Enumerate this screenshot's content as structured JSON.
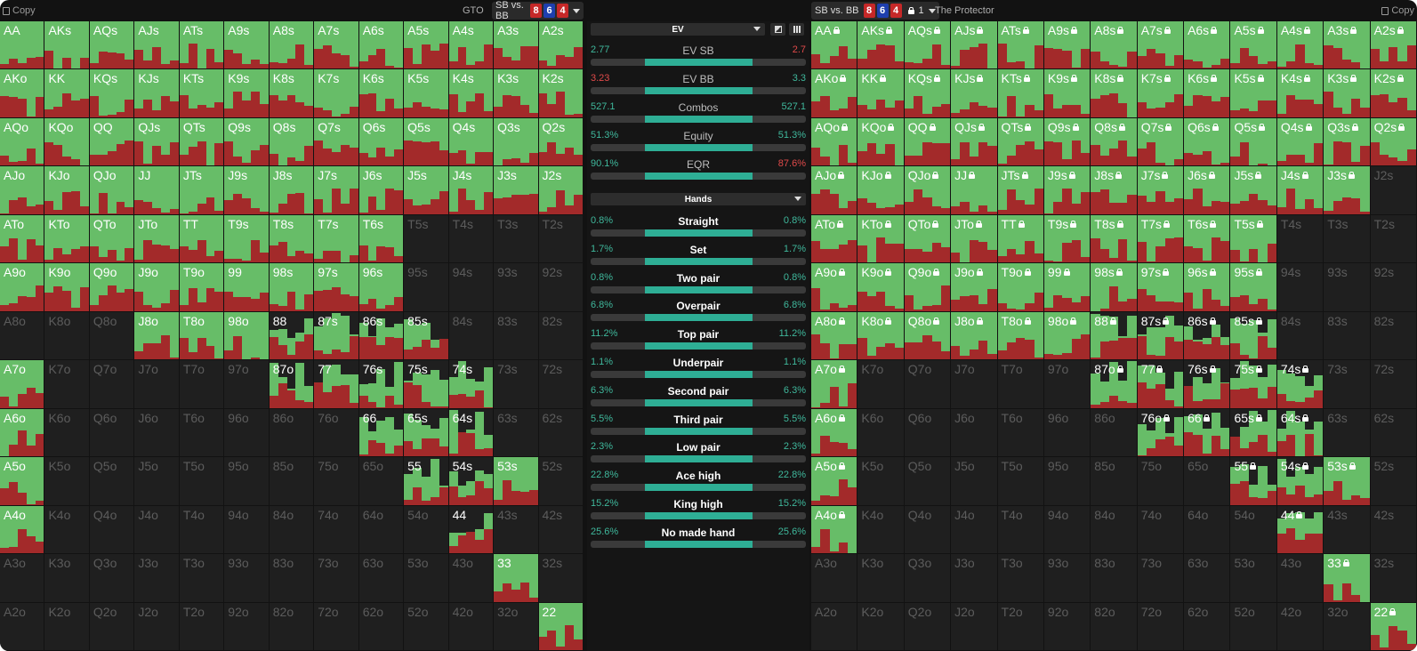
{
  "colors": {
    "green": "#67bd68",
    "red": "#a32a2a",
    "teal": "#2eae95",
    "bg": "#121212",
    "card_red": "#c62828",
    "card_blue": "#1e3fae"
  },
  "left": {
    "copy_label": "Copy",
    "strategy_name": "GTO",
    "spot_label": "SB vs. BB",
    "board": [
      "8",
      "6",
      "4"
    ]
  },
  "right": {
    "copy_label": "Copy",
    "strategy_name": "The Protector",
    "spot_label": "SB vs. BB",
    "board": [
      "8",
      "6",
      "4"
    ],
    "lock_count": "1"
  },
  "middle": {
    "metric_select": "EV",
    "hands_select": "Hands",
    "icons": [
      "contrast-icon",
      "grid-icon"
    ],
    "stats": [
      {
        "name": "EV SB",
        "left": "2.77",
        "right": "2.7",
        "left_color": "#3fb89c",
        "right_color": "#e04a4a"
      },
      {
        "name": "EV BB",
        "left": "3.23",
        "right": "3.3",
        "left_color": "#e04a4a",
        "right_color": "#3fb89c"
      },
      {
        "name": "Combos",
        "left": "527.1",
        "right": "527.1",
        "left_color": "#3fb89c",
        "right_color": "#3fb89c"
      },
      {
        "name": "Equity",
        "left": "51.3%",
        "right": "51.3%",
        "left_color": "#3fb89c",
        "right_color": "#3fb89c"
      },
      {
        "name": "EQR",
        "left": "90.1%",
        "right": "87.6%",
        "left_color": "#3fb89c",
        "right_color": "#e04a4a"
      }
    ],
    "hands": [
      {
        "name": "Straight",
        "left": "0.8%",
        "right": "0.8%"
      },
      {
        "name": "Set",
        "left": "1.7%",
        "right": "1.7%"
      },
      {
        "name": "Two pair",
        "left": "0.8%",
        "right": "0.8%"
      },
      {
        "name": "Overpair",
        "left": "6.8%",
        "right": "6.8%"
      },
      {
        "name": "Top pair",
        "left": "11.2%",
        "right": "11.2%"
      },
      {
        "name": "Underpair",
        "left": "1.1%",
        "right": "1.1%"
      },
      {
        "name": "Second pair",
        "left": "6.3%",
        "right": "6.3%"
      },
      {
        "name": "Third pair",
        "left": "5.5%",
        "right": "5.5%"
      },
      {
        "name": "Low pair",
        "left": "2.3%",
        "right": "2.3%"
      },
      {
        "name": "Ace high",
        "left": "22.8%",
        "right": "22.8%"
      },
      {
        "name": "King high",
        "left": "15.2%",
        "right": "15.2%"
      },
      {
        "name": "No made hand",
        "left": "25.6%",
        "right": "25.6%"
      }
    ]
  },
  "matrix_labels": [
    [
      "AA",
      "AKs",
      "AQs",
      "AJs",
      "ATs",
      "A9s",
      "A8s",
      "A7s",
      "A6s",
      "A5s",
      "A4s",
      "A3s",
      "A2s"
    ],
    [
      "AKo",
      "KK",
      "KQs",
      "KJs",
      "KTs",
      "K9s",
      "K8s",
      "K7s",
      "K6s",
      "K5s",
      "K4s",
      "K3s",
      "K2s"
    ],
    [
      "AQo",
      "KQo",
      "QQ",
      "QJs",
      "QTs",
      "Q9s",
      "Q8s",
      "Q7s",
      "Q6s",
      "Q5s",
      "Q4s",
      "Q3s",
      "Q2s"
    ],
    [
      "AJo",
      "KJo",
      "QJo",
      "JJ",
      "JTs",
      "J9s",
      "J8s",
      "J7s",
      "J6s",
      "J5s",
      "J4s",
      "J3s",
      "J2s"
    ],
    [
      "ATo",
      "KTo",
      "QTo",
      "JTo",
      "TT",
      "T9s",
      "T8s",
      "T7s",
      "T6s",
      "T5s",
      "T4s",
      "T3s",
      "T2s"
    ],
    [
      "A9o",
      "K9o",
      "Q9o",
      "J9o",
      "T9o",
      "99",
      "98s",
      "97s",
      "96s",
      "95s",
      "94s",
      "93s",
      "92s"
    ],
    [
      "A8o",
      "K8o",
      "Q8o",
      "J8o",
      "T8o",
      "98o",
      "88",
      "87s",
      "86s",
      "85s",
      "84s",
      "83s",
      "82s"
    ],
    [
      "A7o",
      "K7o",
      "Q7o",
      "J7o",
      "T7o",
      "97o",
      "87o",
      "77",
      "76s",
      "75s",
      "74s",
      "73s",
      "72s"
    ],
    [
      "A6o",
      "K6o",
      "Q6o",
      "J6o",
      "T6o",
      "96o",
      "86o",
      "76o",
      "66",
      "65s",
      "64s",
      "63s",
      "62s"
    ],
    [
      "A5o",
      "K5o",
      "Q5o",
      "J5o",
      "T5o",
      "95o",
      "85o",
      "75o",
      "65o",
      "55",
      "54s",
      "53s",
      "52s"
    ],
    [
      "A4o",
      "K4o",
      "Q4o",
      "J4o",
      "T4o",
      "94o",
      "84o",
      "74o",
      "64o",
      "54o",
      "44",
      "43s",
      "42s"
    ],
    [
      "A3o",
      "K3o",
      "Q3o",
      "J3o",
      "T3o",
      "93o",
      "83o",
      "73o",
      "63o",
      "53o",
      "43o",
      "33",
      "32s"
    ],
    [
      "A2o",
      "K2o",
      "Q2o",
      "J2o",
      "T2o",
      "92o",
      "82o",
      "72o",
      "62o",
      "52o",
      "42o",
      "32o",
      "22"
    ]
  ],
  "gto_freq_rows": [
    "1111111111111",
    "1111111111111",
    "1111111111111",
    "1111111111111",
    "1111111110000",
    "1111111110000",
    "0001111111000",
    "1000001111100",
    "1000000011100",
    "1000000001110",
    "1000000000100",
    "0000000000010",
    "0000000000001"
  ],
  "protector_locked_rows": [
    "1111111111111",
    "1111111111111",
    "1111111111111",
    "1111111111110",
    "1111111111000",
    "1111111111000",
    "1111111111000",
    "1000001111100",
    "1000000111100",
    "1000000001110",
    "1000000000100",
    "0000000000010",
    "0000000000001"
  ]
}
